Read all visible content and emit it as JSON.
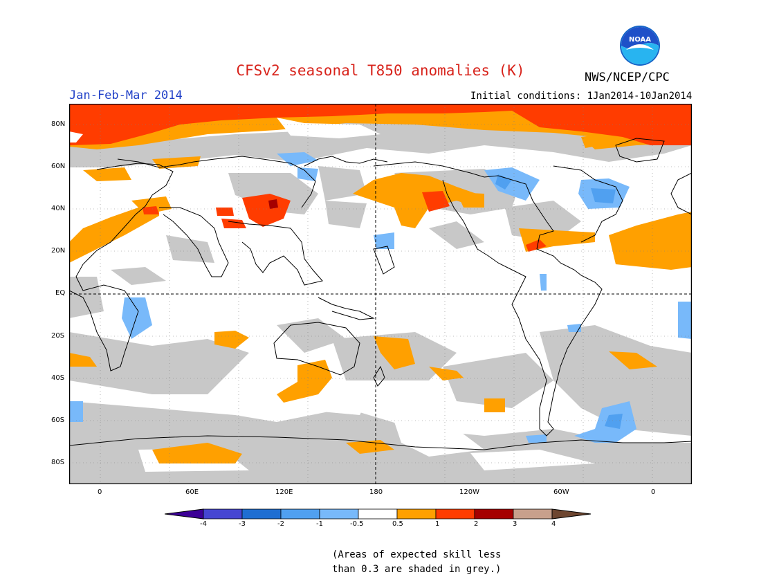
{
  "title": "CFSv2 seasonal T850 anomalies (K)",
  "organization": "NWS/NCEP/CPC",
  "logo_text": "NOAA",
  "season": "Jan-Feb-Mar 2014",
  "initial_conditions": "Initial conditions: 1Jan2014-10Jan2014",
  "note_line1": "(Areas of expected skill less",
  "note_line2": "than 0.3 are shaded in grey.)",
  "lat_labels": [
    "80N",
    "60N",
    "40N",
    "20N",
    "EQ",
    "20S",
    "40S",
    "60S",
    "80S"
  ],
  "lon_labels": [
    "0",
    "60E",
    "120E",
    "180",
    "120W",
    "60W",
    "0"
  ],
  "colorbar_labels": [
    "-4",
    "-3",
    "-2",
    "-1",
    "-0.5",
    "0.5",
    "1",
    "2",
    "3",
    "4"
  ],
  "colors": {
    "title": "#d8231b",
    "season": "#1f3fc7",
    "low_skill_grey": "#c8c8c8",
    "anom_0_5_to_1": "#ffa000",
    "anom_1_to_2": "#ff3c00",
    "anom_2_to_3": "#a50000",
    "anom_3_to_4": "#c8a08c",
    "anom_above_4": "#6e4630",
    "anom_neg_0_5_to_1": "#78b9fa",
    "anom_neg_1_to_2": "#50a0f0",
    "anom_neg_2_to_3": "#1e6ed2",
    "anom_neg_3_to_4": "#4646d2",
    "anom_below_neg4": "#3c0096"
  },
  "colorbar_colors": [
    "#3c0096",
    "#4646d2",
    "#1e6ed2",
    "#50a0f0",
    "#78b9fa",
    "#ffffff",
    "#ffa000",
    "#ff3c00",
    "#a50000",
    "#c8a08c",
    "#6e4630"
  ]
}
